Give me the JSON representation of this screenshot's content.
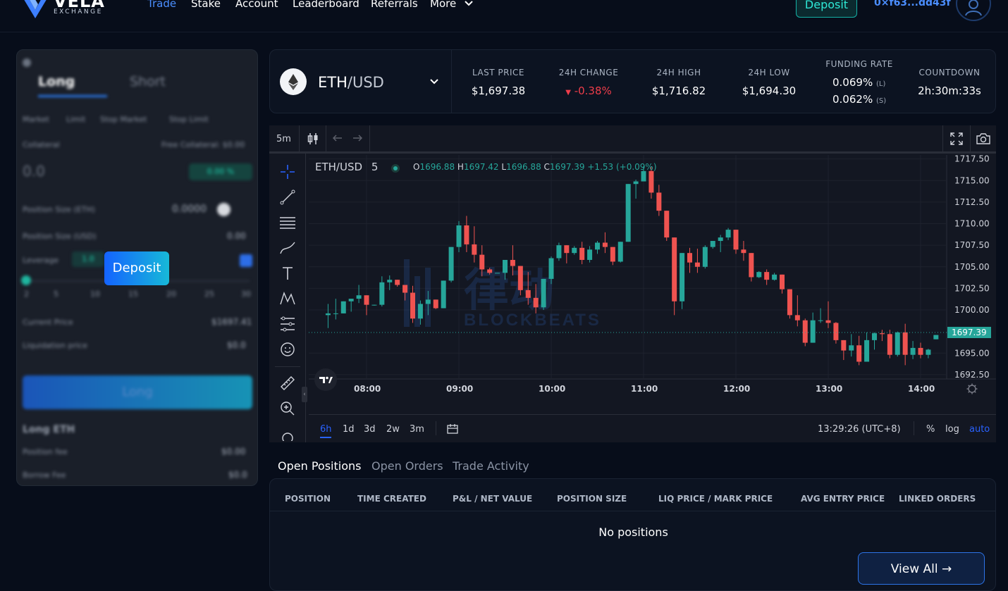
{
  "nav": {
    "logo_text": "VELA",
    "logo_sub": "EXCHANGE",
    "links": [
      "Trade",
      "Stake",
      "Account",
      "Leaderboard",
      "Referrals",
      "More"
    ],
    "deposit_label": "Deposit",
    "wallet": "0×f63...dd43f"
  },
  "left_panel": {
    "tab_long": "Long",
    "tab_short": "Short",
    "order_types": [
      "Market",
      "Limit",
      "Stop Market",
      "Stop Limit"
    ],
    "collateral_label": "Collateral",
    "free_collateral": "Free Collateral: $0.00",
    "collateral_value": "0.0",
    "slippage": "0.00 %",
    "position_size_eth_label": "Position Size (ETH)",
    "position_size_eth": "0.0000",
    "position_size_usd_label": "Position Size (USD)",
    "position_size_usd": "0.00",
    "leverage_label": "Leverage",
    "leverage_value": "1.0",
    "leverage_ticks": [
      "2",
      "5",
      "10",
      "15",
      "20",
      "25",
      "30"
    ],
    "deposit_overlay": "Deposit",
    "current_price_label": "Current Price",
    "current_price": "$1697.41",
    "liq_price_label": "Liquidation price",
    "liq_price": "$0.0",
    "submit_label": "Long",
    "summary_title": "Long ETH",
    "position_fee_label": "Position fee",
    "position_fee": "$0.00",
    "borrow_fee_label": "Borrow Fee",
    "borrow_fee": "$0.0"
  },
  "ticker": {
    "pair_base": "ETH",
    "pair_quote": "/USD",
    "last_price_label": "LAST PRICE",
    "last_price": "$1,697.38",
    "change_label": "24H CHANGE",
    "change": "-0.38%",
    "high_label": "24H HIGH",
    "high": "$1,716.82",
    "low_label": "24H LOW",
    "low": "$1,694.30",
    "funding_label": "FUNDING RATE",
    "funding_long": "0.069%",
    "funding_long_tag": "(L)",
    "funding_short": "0.062%",
    "funding_short_tag": "(S)",
    "countdown_label": "COUNTDOWN",
    "countdown": "2h:30m:33s"
  },
  "chart": {
    "interval": "5m",
    "legend_symbol": "ETH/USD",
    "legend_interval": "5",
    "legend_o": "1696.88",
    "legend_h": "1697.42",
    "legend_l": "1696.88",
    "legend_c": "1697.39",
    "legend_chg": "+1.53 (+0.09%)",
    "o_label": "O",
    "h_label": "H",
    "l_label": "L",
    "c_label": "C",
    "last_price_tag": "1697.39",
    "ranges": [
      "6h",
      "1d",
      "3d",
      "2w",
      "3m"
    ],
    "clock": "13:29:26 (UTC+8)",
    "percent": "%",
    "log": "log",
    "auto": "auto",
    "watermark_sub": "BLOCKBEATS",
    "up_color": "#26a69a",
    "down_color": "#ef5350"
  },
  "chart_data": {
    "type": "candlestick",
    "x_ticks": [
      "08:00",
      "09:00",
      "10:00",
      "11:00",
      "12:00",
      "13:00",
      "14:00"
    ],
    "y_ticks": [
      "1717.50",
      "1715.00",
      "1712.50",
      "1710.00",
      "1707.50",
      "1705.00",
      "1702.50",
      "1700.00",
      "1695.00",
      "1692.50"
    ],
    "ylim": [
      1692.5,
      1717.5
    ],
    "interval_minutes": 5,
    "first_candle_time": "07:35",
    "candles": [
      [
        1699.4,
        1700.7,
        1699.6,
        1697.9
      ],
      [
        1699.6,
        1701.3,
        1699.6,
        1698.9
      ],
      [
        1699.6,
        1701.0,
        1701.0,
        1699.6
      ],
      [
        1701.0,
        1701.3,
        1701.3,
        1699.8
      ],
      [
        1701.3,
        1702.9,
        1701.7,
        1700.8
      ],
      [
        1701.7,
        1701.7,
        1700.6,
        1699.4
      ],
      [
        1700.6,
        1700.6,
        1700.6,
        1700.5
      ],
      [
        1700.6,
        1703.9,
        1703.2,
        1700.4
      ],
      [
        1703.2,
        1704.0,
        1703.5,
        1702.3
      ],
      [
        1703.5,
        1703.5,
        1702.9,
        1702.7
      ],
      [
        1702.9,
        1702.9,
        1702.0,
        1701.1
      ],
      [
        1702.0,
        1702.8,
        1699.0,
        1698.5
      ],
      [
        1699.0,
        1701.1,
        1700.7,
        1698.3
      ],
      [
        1700.7,
        1702.2,
        1701.2,
        1699.4
      ],
      [
        1701.2,
        1701.2,
        1700.2,
        1700.1
      ],
      [
        1700.2,
        1703.4,
        1703.4,
        1700.2
      ],
      [
        1703.4,
        1706.9,
        1707.3,
        1703.2
      ],
      [
        1707.3,
        1710.3,
        1709.8,
        1706.7
      ],
      [
        1709.8,
        1710.9,
        1707.6,
        1706.7
      ],
      [
        1707.6,
        1709.7,
        1706.4,
        1705.5
      ],
      [
        1706.4,
        1707.5,
        1704.7,
        1703.9
      ],
      [
        1704.7,
        1704.9,
        1704.3,
        1704.1
      ],
      [
        1704.3,
        1704.3,
        1704.3,
        1704.3
      ],
      [
        1704.3,
        1705.5,
        1705.8,
        1703.5
      ],
      [
        1705.8,
        1707.5,
        1705.1,
        1704.0
      ],
      [
        1705.1,
        1705.1,
        1702.3,
        1701.7
      ],
      [
        1702.3,
        1704.4,
        1701.4,
        1700.6
      ],
      [
        1701.4,
        1703.0,
        1700.3,
        1699.6
      ],
      [
        1700.3,
        1703.5,
        1703.6,
        1700.0
      ],
      [
        1703.6,
        1706.2,
        1706.0,
        1703.0
      ],
      [
        1706.0,
        1707.8,
        1707.5,
        1705.7
      ],
      [
        1707.5,
        1707.5,
        1706.6,
        1705.4
      ],
      [
        1706.6,
        1707.4,
        1707.2,
        1706.4
      ],
      [
        1707.2,
        1707.9,
        1705.8,
        1705.3
      ],
      [
        1705.8,
        1707.4,
        1707.0,
        1705.5
      ],
      [
        1707.0,
        1708.0,
        1707.8,
        1706.5
      ],
      [
        1707.8,
        1709.0,
        1707.3,
        1706.6
      ],
      [
        1707.3,
        1707.3,
        1705.6,
        1705.2
      ],
      [
        1705.6,
        1707.7,
        1707.9,
        1705.5
      ],
      [
        1707.9,
        1712.3,
        1714.6,
        1707.9
      ],
      [
        1714.6,
        1715.1,
        1714.9,
        1712.9
      ],
      [
        1714.9,
        1716.6,
        1716.1,
        1714.9
      ],
      [
        1716.1,
        1716.6,
        1713.6,
        1712.9
      ],
      [
        1713.6,
        1714.5,
        1711.5,
        1710.9
      ],
      [
        1711.5,
        1711.5,
        1708.4,
        1708.0
      ],
      [
        1708.4,
        1708.4,
        1701.0,
        1699.4
      ],
      [
        1701.0,
        1702.8,
        1706.6,
        1700.1
      ],
      [
        1706.6,
        1707.2,
        1705.5,
        1704.3
      ],
      [
        1705.5,
        1707.1,
        1705.0,
        1704.3
      ],
      [
        1705.0,
        1707.5,
        1707.3,
        1704.8
      ],
      [
        1707.3,
        1708.0,
        1708.0,
        1707.1
      ],
      [
        1708.0,
        1708.7,
        1708.4,
        1706.7
      ],
      [
        1708.4,
        1709.5,
        1709.3,
        1708.1
      ],
      [
        1709.3,
        1709.3,
        1707.0,
        1706.5
      ],
      [
        1707.0,
        1708.0,
        1706.6,
        1705.7
      ],
      [
        1706.6,
        1706.6,
        1703.8,
        1703.3
      ],
      [
        1703.8,
        1704.5,
        1704.4,
        1703.7
      ],
      [
        1704.4,
        1704.7,
        1703.5,
        1702.9
      ],
      [
        1703.5,
        1704.3,
        1704.1,
        1703.4
      ],
      [
        1704.1,
        1704.1,
        1702.4,
        1701.9
      ],
      [
        1702.4,
        1702.4,
        1699.4,
        1699.0
      ],
      [
        1699.4,
        1701.7,
        1698.8,
        1698.1
      ],
      [
        1698.8,
        1699.0,
        1696.2,
        1695.8
      ],
      [
        1696.2,
        1699.7,
        1698.8,
        1696.2
      ],
      [
        1698.8,
        1700.2,
        1698.8,
        1698.5
      ],
      [
        1698.8,
        1701.0,
        1698.5,
        1697.9
      ],
      [
        1698.5,
        1698.6,
        1696.5,
        1696.1
      ],
      [
        1696.5,
        1696.5,
        1695.3,
        1694.2
      ],
      [
        1695.3,
        1697.2,
        1695.9,
        1694.6
      ],
      [
        1695.9,
        1697.0,
        1694.0,
        1693.6
      ],
      [
        1694.0,
        1697.4,
        1696.5,
        1694.0
      ],
      [
        1696.5,
        1697.4,
        1697.3,
        1695.4
      ],
      [
        1697.3,
        1697.7,
        1697.2,
        1696.4
      ],
      [
        1697.2,
        1697.7,
        1694.8,
        1694.4
      ],
      [
        1694.8,
        1697.5,
        1697.4,
        1694.6
      ],
      [
        1697.4,
        1698.4,
        1694.8,
        1693.6
      ],
      [
        1694.8,
        1696.4,
        1695.6,
        1694.3
      ],
      [
        1695.6,
        1696.2,
        1694.8,
        1694.4
      ],
      [
        1694.8,
        1695.5,
        1695.4,
        1694.4
      ],
      [
        1696.6,
        1696.9,
        1697.1,
        1696.6
      ]
    ]
  },
  "positions": {
    "tabs": [
      "Open Positions",
      "Open Orders",
      "Trade Activity"
    ],
    "headers": [
      "POSITION",
      "TIME CREATED",
      "P&L / NET VALUE",
      "POSITION SIZE",
      "LIQ PRICE / MARK PRICE",
      "AVG ENTRY PRICE",
      "LINKED ORDERS"
    ],
    "empty": "No positions",
    "view_all": "View All →"
  }
}
